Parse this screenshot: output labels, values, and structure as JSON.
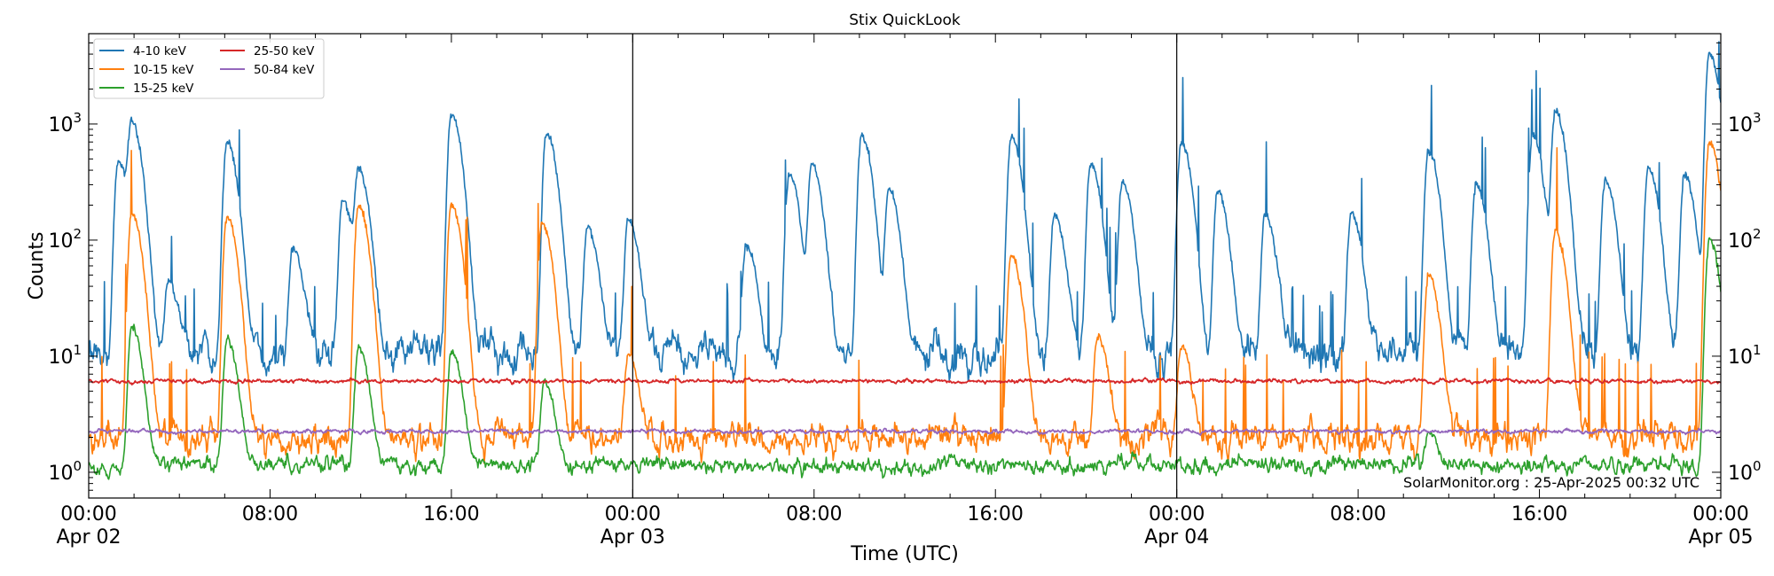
{
  "chart_data": {
    "type": "line",
    "title": "Stix QuickLook",
    "xlabel": "Time (UTC)",
    "ylabel": "Counts",
    "yscale": "log",
    "ylim": [
      0.6,
      6000
    ],
    "xlim_hours": [
      0,
      72
    ],
    "x_ticks": [
      {
        "h": 0,
        "time": "00:00",
        "date": "Apr 02"
      },
      {
        "h": 8,
        "time": "08:00",
        "date": ""
      },
      {
        "h": 16,
        "time": "16:00",
        "date": ""
      },
      {
        "h": 24,
        "time": "00:00",
        "date": "Apr 03"
      },
      {
        "h": 32,
        "time": "08:00",
        "date": ""
      },
      {
        "h": 40,
        "time": "16:00",
        "date": ""
      },
      {
        "h": 48,
        "time": "00:00",
        "date": "Apr 04"
      },
      {
        "h": 56,
        "time": "08:00",
        "date": ""
      },
      {
        "h": 64,
        "time": "16:00",
        "date": ""
      },
      {
        "h": 72,
        "time": "00:00",
        "date": "Apr 05"
      }
    ],
    "y_ticks": [
      {
        "value": 1,
        "base": "10",
        "exp": "0"
      },
      {
        "value": 10,
        "base": "10",
        "exp": "1"
      },
      {
        "value": 100,
        "base": "10",
        "exp": "2"
      },
      {
        "value": 1000,
        "base": "10",
        "exp": "3"
      }
    ],
    "day_boundaries_hours": [
      24,
      48
    ],
    "legend_position": "top-left",
    "annotation": "SolarMonitor.org : 25-Apr-2025 00:32 UTC",
    "series": [
      {
        "name": "4-10 keV",
        "color": "#1f77b4",
        "baseline": 11,
        "peaks": [
          {
            "t": 1.3,
            "v": 480
          },
          {
            "t": 1.9,
            "v": 1000
          },
          {
            "t": 3.5,
            "v": 45
          },
          {
            "t": 6.1,
            "v": 700
          },
          {
            "t": 9.0,
            "v": 85
          },
          {
            "t": 11.2,
            "v": 220
          },
          {
            "t": 11.9,
            "v": 400
          },
          {
            "t": 16.0,
            "v": 1200
          },
          {
            "t": 20.2,
            "v": 850
          },
          {
            "t": 22.0,
            "v": 130
          },
          {
            "t": 23.8,
            "v": 150
          },
          {
            "t": 29.0,
            "v": 90
          },
          {
            "t": 30.9,
            "v": 360
          },
          {
            "t": 31.9,
            "v": 450
          },
          {
            "t": 34.1,
            "v": 800
          },
          {
            "t": 35.3,
            "v": 280
          },
          {
            "t": 40.7,
            "v": 780
          },
          {
            "t": 42.6,
            "v": 160
          },
          {
            "t": 44.2,
            "v": 450
          },
          {
            "t": 45.6,
            "v": 320
          },
          {
            "t": 48.2,
            "v": 700
          },
          {
            "t": 49.8,
            "v": 260
          },
          {
            "t": 51.9,
            "v": 170
          },
          {
            "t": 55.7,
            "v": 170
          },
          {
            "t": 59.1,
            "v": 600
          },
          {
            "t": 61.2,
            "v": 300
          },
          {
            "t": 63.7,
            "v": 800
          },
          {
            "t": 64.7,
            "v": 1300
          },
          {
            "t": 66.9,
            "v": 330
          },
          {
            "t": 68.8,
            "v": 420
          },
          {
            "t": 70.4,
            "v": 370
          },
          {
            "t": 71.5,
            "v": 4000
          }
        ]
      },
      {
        "name": "10-15 keV",
        "color": "#ff7f0e",
        "baseline": 2.0,
        "peaks": [
          {
            "t": 1.9,
            "v": 170
          },
          {
            "t": 6.1,
            "v": 160
          },
          {
            "t": 11.9,
            "v": 200
          },
          {
            "t": 16.0,
            "v": 200
          },
          {
            "t": 20.0,
            "v": 140
          },
          {
            "t": 23.8,
            "v": 10
          },
          {
            "t": 40.7,
            "v": 75
          },
          {
            "t": 44.5,
            "v": 15
          },
          {
            "t": 48.2,
            "v": 12
          },
          {
            "t": 59.1,
            "v": 50
          },
          {
            "t": 64.7,
            "v": 120
          },
          {
            "t": 71.5,
            "v": 700
          }
        ]
      },
      {
        "name": "15-25 keV",
        "color": "#2ca02c",
        "baseline": 1.15,
        "peaks": [
          {
            "t": 1.9,
            "v": 18
          },
          {
            "t": 6.1,
            "v": 14
          },
          {
            "t": 11.9,
            "v": 12
          },
          {
            "t": 16.0,
            "v": 11
          },
          {
            "t": 20.1,
            "v": 6
          },
          {
            "t": 59.1,
            "v": 2.2
          },
          {
            "t": 71.5,
            "v": 100
          }
        ]
      },
      {
        "name": "25-50 keV",
        "color": "#d62728",
        "baseline": 6.1,
        "peaks": []
      },
      {
        "name": "50-84 keV",
        "color": "#9467bd",
        "baseline": 2.25,
        "peaks": []
      }
    ]
  }
}
